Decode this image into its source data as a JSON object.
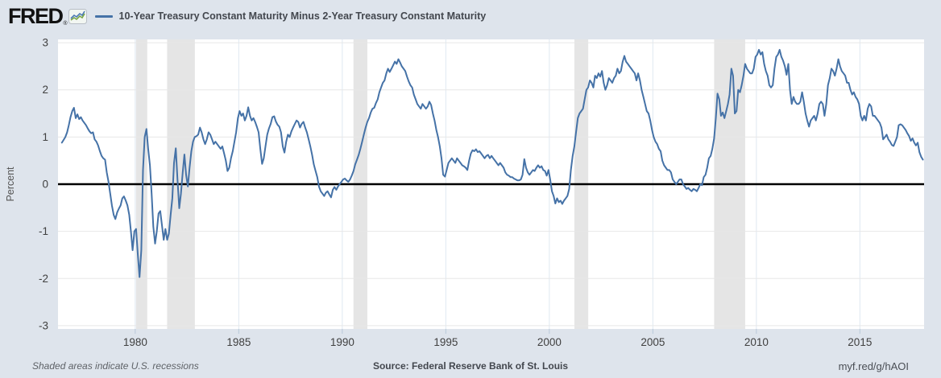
{
  "header": {
    "logo_text": "FRED",
    "logo_registered": "®",
    "series_title": "10-Year Treasury Constant Maturity Minus 2-Year Treasury Constant Maturity"
  },
  "footer": {
    "note": "Shaded areas indicate U.S. recessions",
    "source": "Source: Federal Reserve Bank of St. Louis",
    "link": "myf.red/g/hAOI"
  },
  "chart_data": {
    "type": "line",
    "title": "10-Year Treasury Constant Maturity Minus 2-Year Treasury Constant Maturity",
    "xlabel": "",
    "ylabel": "Percent",
    "ylim": [
      -3,
      3
    ],
    "yticks": [
      -3,
      -2,
      -1,
      0,
      1,
      2,
      3
    ],
    "xticks": [
      1980,
      1985,
      1990,
      1995,
      2000,
      2005,
      2010,
      2015
    ],
    "x_range": [
      1976.27,
      2018.1
    ],
    "grid": true,
    "legend_position": "top",
    "recessions": [
      [
        1980.04,
        1980.58
      ],
      [
        1981.54,
        1982.88
      ],
      [
        1990.54,
        1991.21
      ],
      [
        2001.21,
        2001.88
      ],
      [
        2007.96,
        2009.46
      ]
    ],
    "colors": {
      "line": "#4572a7",
      "recession_band": "#e5e5e5",
      "zero_line": "#000000",
      "h_gridline": "#e7e7e7",
      "v_gridline": "#dfe8f1",
      "tick": "#b9c9d9",
      "axis_text": "#404040",
      "background": "#dee4ec",
      "plot_background": "#ffffff"
    },
    "series": [
      {
        "name": "10-Year Treasury Constant Maturity Minus 2-Year Treasury Constant Maturity",
        "units": "Percent",
        "frequency": "monthly",
        "start": "1976-06",
        "end": "2018-01",
        "values": [
          0.88,
          0.94,
          1.0,
          1.1,
          1.25,
          1.42,
          1.55,
          1.62,
          1.4,
          1.48,
          1.38,
          1.42,
          1.35,
          1.3,
          1.25,
          1.18,
          1.12,
          1.08,
          1.1,
          0.95,
          0.9,
          0.82,
          0.7,
          0.6,
          0.55,
          0.52,
          0.25,
          0.05,
          -0.2,
          -0.45,
          -0.65,
          -0.74,
          -0.6,
          -0.52,
          -0.45,
          -0.3,
          -0.26,
          -0.35,
          -0.45,
          -0.65,
          -1.0,
          -1.4,
          -1.0,
          -0.95,
          -1.5,
          -1.97,
          -1.4,
          0.3,
          1.0,
          1.17,
          0.75,
          0.4,
          -0.2,
          -0.9,
          -1.26,
          -1.0,
          -0.62,
          -0.57,
          -0.88,
          -1.18,
          -0.95,
          -1.18,
          -1.05,
          -0.65,
          -0.3,
          0.45,
          0.76,
          0.1,
          -0.51,
          -0.2,
          0.25,
          0.63,
          0.2,
          -0.05,
          0.35,
          0.7,
          0.9,
          1.0,
          1.02,
          1.05,
          1.2,
          1.1,
          0.95,
          0.85,
          0.95,
          1.1,
          1.05,
          0.95,
          0.85,
          0.9,
          0.85,
          0.8,
          0.75,
          0.8,
          0.65,
          0.5,
          0.28,
          0.35,
          0.55,
          0.7,
          0.9,
          1.1,
          1.4,
          1.55,
          1.45,
          1.5,
          1.35,
          1.45,
          1.63,
          1.45,
          1.35,
          1.4,
          1.32,
          1.22,
          1.1,
          0.75,
          0.43,
          0.55,
          0.8,
          1.05,
          1.18,
          1.28,
          1.42,
          1.44,
          1.33,
          1.26,
          1.22,
          1.1,
          0.8,
          0.67,
          0.9,
          1.05,
          1.0,
          1.12,
          1.2,
          1.28,
          1.35,
          1.32,
          1.2,
          1.28,
          1.32,
          1.2,
          1.1,
          0.95,
          0.8,
          0.62,
          0.42,
          0.28,
          0.15,
          -0.05,
          -0.15,
          -0.2,
          -0.25,
          -0.18,
          -0.15,
          -0.22,
          -0.28,
          -0.12,
          -0.06,
          -0.12,
          -0.05,
          0.0,
          0.05,
          0.1,
          0.12,
          0.08,
          0.05,
          0.1,
          0.18,
          0.28,
          0.42,
          0.52,
          0.62,
          0.75,
          0.9,
          1.05,
          1.2,
          1.32,
          1.4,
          1.52,
          1.6,
          1.62,
          1.72,
          1.8,
          1.95,
          2.05,
          2.15,
          2.2,
          2.35,
          2.45,
          2.38,
          2.45,
          2.52,
          2.6,
          2.55,
          2.65,
          2.58,
          2.5,
          2.45,
          2.4,
          2.28,
          2.18,
          2.1,
          2.05,
          1.9,
          1.8,
          1.7,
          1.65,
          1.6,
          1.7,
          1.65,
          1.6,
          1.65,
          1.75,
          1.68,
          1.5,
          1.35,
          1.15,
          1.0,
          0.8,
          0.55,
          0.2,
          0.16,
          0.3,
          0.45,
          0.5,
          0.55,
          0.5,
          0.45,
          0.55,
          0.5,
          0.45,
          0.4,
          0.38,
          0.35,
          0.3,
          0.5,
          0.65,
          0.72,
          0.7,
          0.74,
          0.68,
          0.7,
          0.65,
          0.6,
          0.55,
          0.6,
          0.62,
          0.55,
          0.6,
          0.55,
          0.5,
          0.45,
          0.4,
          0.45,
          0.4,
          0.35,
          0.25,
          0.2,
          0.18,
          0.15,
          0.15,
          0.12,
          0.1,
          0.08,
          0.08,
          0.1,
          0.2,
          0.53,
          0.35,
          0.25,
          0.2,
          0.25,
          0.3,
          0.28,
          0.35,
          0.4,
          0.35,
          0.38,
          0.3,
          0.28,
          0.18,
          0.3,
          0.1,
          -0.15,
          -0.25,
          -0.41,
          -0.3,
          -0.38,
          -0.35,
          -0.42,
          -0.35,
          -0.3,
          -0.25,
          -0.1,
          0.3,
          0.6,
          0.8,
          1.1,
          1.4,
          1.5,
          1.55,
          1.6,
          1.8,
          2.0,
          2.05,
          2.2,
          2.15,
          2.05,
          2.3,
          2.25,
          2.35,
          2.28,
          2.4,
          2.15,
          2.0,
          2.1,
          2.25,
          2.2,
          2.15,
          2.25,
          2.3,
          2.45,
          2.35,
          2.4,
          2.6,
          2.72,
          2.6,
          2.55,
          2.5,
          2.45,
          2.4,
          2.35,
          2.2,
          2.35,
          2.2,
          2.0,
          1.85,
          1.7,
          1.55,
          1.5,
          1.35,
          1.15,
          1.0,
          0.9,
          0.85,
          0.75,
          0.7,
          0.5,
          0.4,
          0.35,
          0.3,
          0.3,
          0.25,
          0.1,
          0.05,
          0.0,
          0.05,
          0.1,
          0.1,
          0.0,
          -0.05,
          -0.1,
          -0.08,
          -0.12,
          -0.15,
          -0.1,
          -0.12,
          -0.15,
          -0.08,
          0.0,
          -0.02,
          0.15,
          0.2,
          0.35,
          0.55,
          0.6,
          0.75,
          0.97,
          1.4,
          1.92,
          1.8,
          1.45,
          1.52,
          1.4,
          1.55,
          1.7,
          1.9,
          2.45,
          2.3,
          1.5,
          1.55,
          2.0,
          1.95,
          2.1,
          2.3,
          2.55,
          2.45,
          2.4,
          2.35,
          2.35,
          2.45,
          2.7,
          2.75,
          2.85,
          2.75,
          2.8,
          2.55,
          2.4,
          2.3,
          2.1,
          2.05,
          2.1,
          2.45,
          2.7,
          2.75,
          2.85,
          2.7,
          2.62,
          2.5,
          2.32,
          2.55,
          2.0,
          1.7,
          1.85,
          1.75,
          1.7,
          1.7,
          1.75,
          1.95,
          1.75,
          1.5,
          1.35,
          1.22,
          1.35,
          1.4,
          1.45,
          1.35,
          1.5,
          1.7,
          1.75,
          1.7,
          1.45,
          1.7,
          2.1,
          2.25,
          2.45,
          2.4,
          2.3,
          2.45,
          2.65,
          2.5,
          2.4,
          2.35,
          2.3,
          2.15,
          2.15,
          2.0,
          1.9,
          1.95,
          1.85,
          1.8,
          1.7,
          1.45,
          1.35,
          1.45,
          1.35,
          1.6,
          1.7,
          1.65,
          1.45,
          1.45,
          1.4,
          1.35,
          1.3,
          1.2,
          0.95,
          1.0,
          1.05,
          0.95,
          0.9,
          0.83,
          0.81,
          0.9,
          1.0,
          1.25,
          1.27,
          1.25,
          1.2,
          1.15,
          1.08,
          1.02,
          0.92,
          0.97,
          0.88,
          0.82,
          0.88,
          0.68,
          0.58,
          0.52
        ]
      }
    ]
  }
}
